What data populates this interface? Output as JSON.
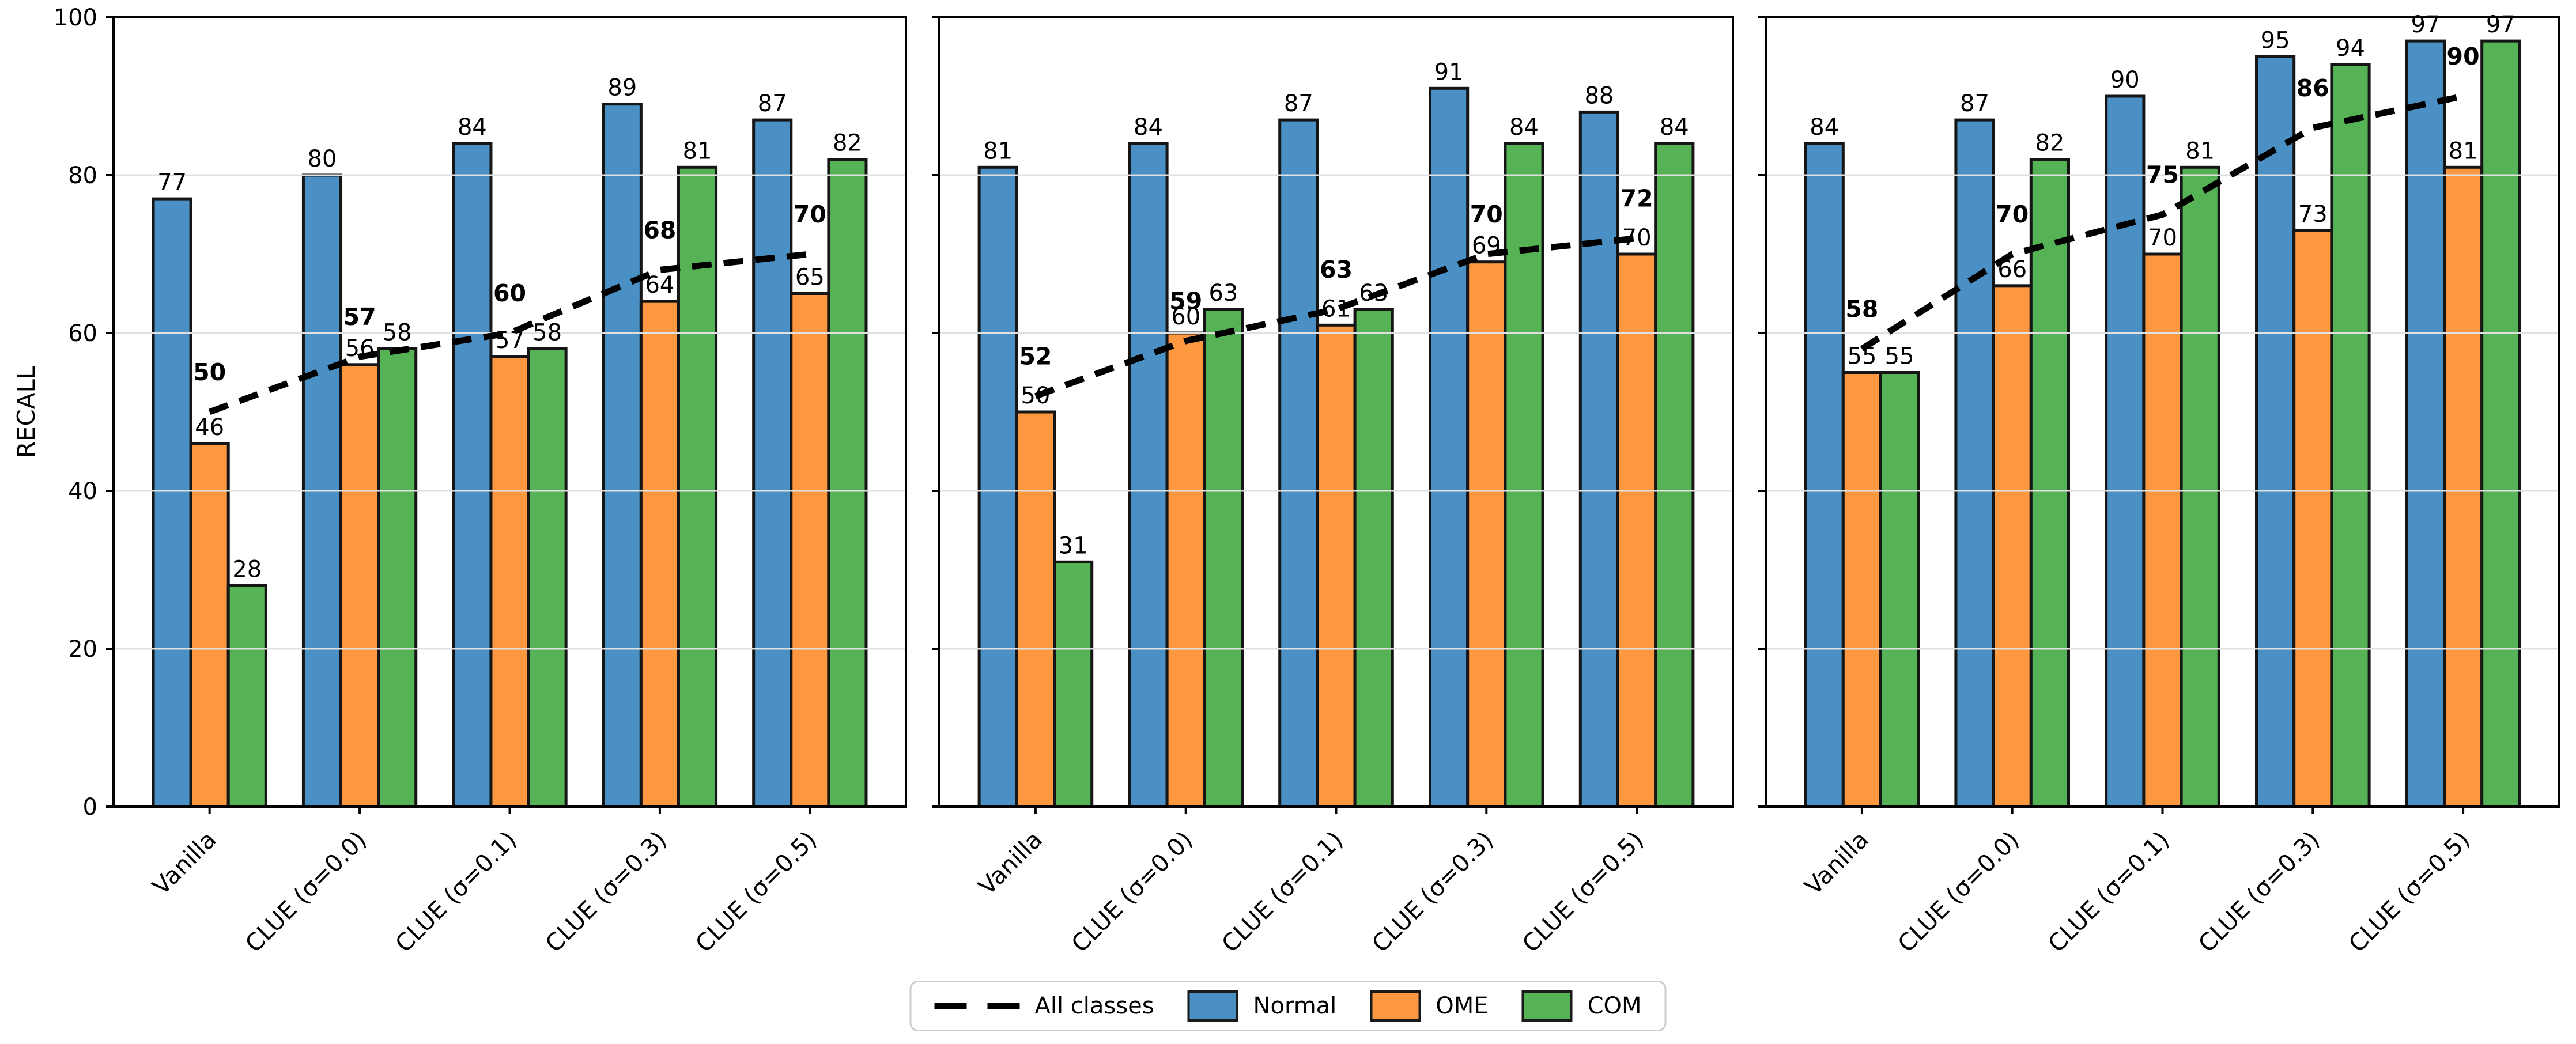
{
  "chart_data": {
    "type": "bar",
    "title": "",
    "ylabel": "RECALL",
    "xlabel": "",
    "ylim": [
      0,
      100
    ],
    "yticks": [
      0,
      20,
      40,
      60,
      80,
      100
    ],
    "grid": true,
    "legend_position": "bottom-center",
    "categories": [
      "Vanilla",
      "CLUE (σ=0.0)",
      "CLUE (σ=0.1)",
      "CLUE (σ=0.3)",
      "CLUE (σ=0.5)"
    ],
    "colors": {
      "Normal": "#4a90c4",
      "OME": "#fd9840",
      "COM": "#55b355",
      "line": "#000000",
      "bar_edge": "#151515",
      "grid": "#e0e0e0",
      "spine": "#000000"
    },
    "legend": {
      "items": [
        {
          "label": "All classes",
          "marker": "dashed-line",
          "color": "#000000"
        },
        {
          "label": "Normal",
          "marker": "swatch",
          "color": "#4a90c4"
        },
        {
          "label": "OME",
          "marker": "swatch",
          "color": "#fd9840"
        },
        {
          "label": "COM",
          "marker": "swatch",
          "color": "#55b355"
        }
      ]
    },
    "panels": [
      {
        "id": "left",
        "series": [
          {
            "name": "Normal",
            "values": [
              77,
              80,
              84,
              89,
              87
            ]
          },
          {
            "name": "OME",
            "values": [
              46,
              56,
              57,
              64,
              65
            ]
          },
          {
            "name": "COM",
            "values": [
              28,
              58,
              58,
              81,
              82
            ]
          }
        ],
        "line": {
          "name": "All classes",
          "values": [
            50,
            57,
            60,
            68,
            70
          ]
        }
      },
      {
        "id": "middle",
        "series": [
          {
            "name": "Normal",
            "values": [
              81,
              84,
              87,
              91,
              88
            ]
          },
          {
            "name": "OME",
            "values": [
              50,
              60,
              61,
              69,
              70
            ]
          },
          {
            "name": "COM",
            "values": [
              31,
              63,
              63,
              84,
              84
            ]
          }
        ],
        "line": {
          "name": "All classes",
          "values": [
            52,
            59,
            63,
            70,
            72
          ]
        }
      },
      {
        "id": "right",
        "series": [
          {
            "name": "Normal",
            "values": [
              84,
              87,
              90,
              95,
              97
            ]
          },
          {
            "name": "OME",
            "values": [
              55,
              66,
              70,
              73,
              81
            ]
          },
          {
            "name": "COM",
            "values": [
              55,
              82,
              81,
              94,
              97
            ]
          }
        ],
        "line": {
          "name": "All classes",
          "values": [
            58,
            70,
            75,
            86,
            90
          ]
        }
      }
    ]
  }
}
